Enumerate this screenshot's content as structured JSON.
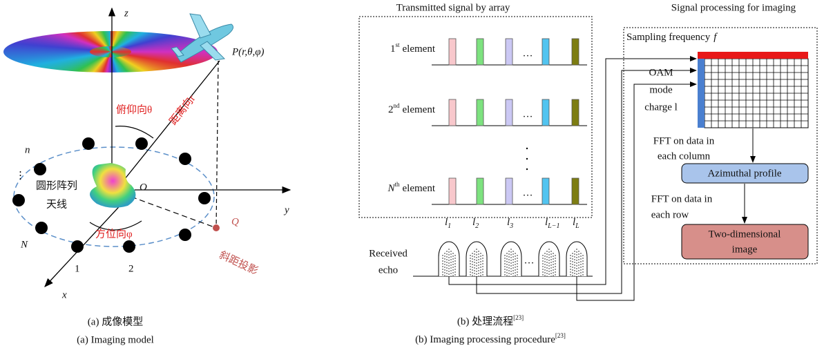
{
  "panel_a": {
    "axes": {
      "z": "z",
      "y": "y",
      "x": "x"
    },
    "point_p": "P(r,θ,φ)",
    "origin": "O",
    "point_q": "Q",
    "elevation": "俯仰向θ",
    "range": "距离向r",
    "azimuth": "方位向φ",
    "slant_projection": "斜距投影",
    "element_labels": {
      "n": "n",
      "dots": "⋮",
      "N": "N",
      "first": "1",
      "second": "2"
    },
    "array_label": [
      "圆形阵列",
      "天线"
    ],
    "caption_cn": "(a) 成像模型",
    "caption_en": "(a) Imaging model"
  },
  "panel_b": {
    "left_title": "Transmitted signal by array",
    "right_title": "Signal processing for imaging",
    "elements": [
      {
        "index": "1",
        "suffix": "st",
        "label": "element"
      },
      {
        "index": "2",
        "suffix": "nd",
        "label": "element"
      },
      {
        "index": "N",
        "suffix": "th",
        "label": "element"
      }
    ],
    "ellipsis": "···",
    "received_echo": [
      "Received",
      "echo"
    ],
    "echo_labels": [
      {
        "base": "l",
        "sub": "1"
      },
      {
        "base": "l",
        "sub": "2"
      },
      {
        "base": "l",
        "sub": "3"
      },
      {
        "base": "l",
        "sub": "L−1"
      },
      {
        "base": "l",
        "sub": "L"
      }
    ],
    "sampling_frequency": {
      "text": "Sampling frequency",
      "symbol": "f"
    },
    "oam_label": [
      "OAM",
      "mode",
      "charge l"
    ],
    "fft_column": [
      "FFT on data in",
      "each column"
    ],
    "azimuthal_profile": "Azimuthal profile",
    "fft_row": [
      "FFT on data in",
      "each row"
    ],
    "two_dimensional_image": [
      "Two-dimensional",
      "image"
    ],
    "caption_cn": {
      "text": "(b) 处理流程",
      "ref": "[23]"
    },
    "caption_en": {
      "text": "(b) Imaging processing procedure",
      "ref": "[23]"
    }
  }
}
